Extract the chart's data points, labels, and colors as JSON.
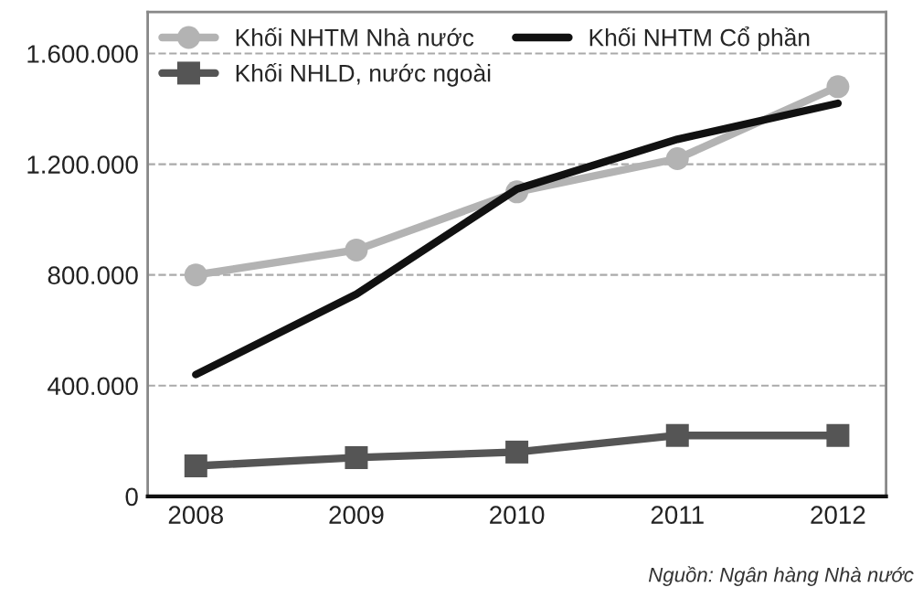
{
  "chart_data": {
    "type": "line",
    "categories": [
      "2008",
      "2009",
      "2010",
      "2011",
      "2012"
    ],
    "series": [
      {
        "name": "Khối NHTM Nhà nước",
        "color": "#b3b3b3",
        "marker": "circle",
        "values": [
          800000,
          890000,
          1100000,
          1220000,
          1480000
        ]
      },
      {
        "name": "Khối NHTM Cổ phần",
        "color": "#111111",
        "marker": "none",
        "values": [
          440000,
          730000,
          1110000,
          1290000,
          1420000
        ]
      },
      {
        "name": "Khối NHLD, nước ngoài",
        "color": "#555555",
        "marker": "square",
        "values": [
          110000,
          140000,
          160000,
          220000,
          220000
        ]
      }
    ],
    "ylim": [
      0,
      1750000
    ],
    "yticks": [
      {
        "value": 0,
        "label": "0"
      },
      {
        "value": 400000,
        "label": "400.000"
      },
      {
        "value": 800000,
        "label": "800.000"
      },
      {
        "value": 1200000,
        "label": "1.200.000"
      },
      {
        "value": 1600000,
        "label": "1.600.000"
      }
    ],
    "grid": "y",
    "legend": "top left",
    "line_style": "solid",
    "annotations": [
      "Nguồn: Ngân hàng Nhà nước"
    ]
  }
}
